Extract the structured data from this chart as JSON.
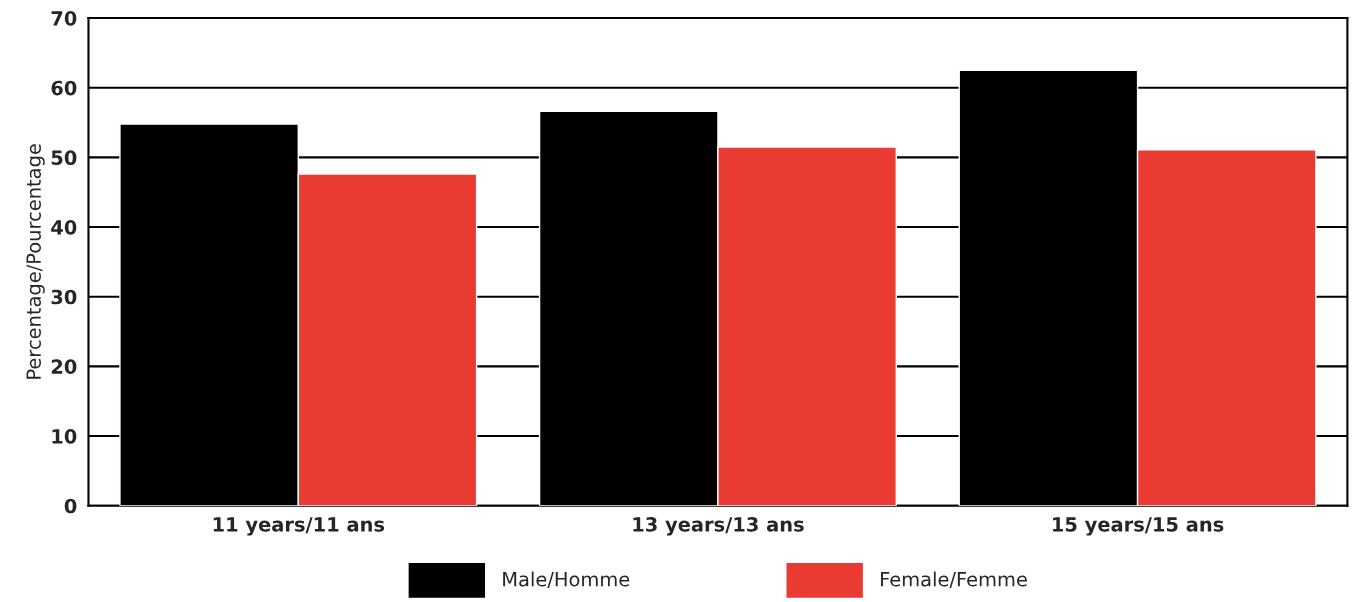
{
  "chart_data": {
    "type": "bar",
    "ylabel": "Percentage/Pourcentage",
    "categories": [
      "11 years/11 ans",
      "13 years/13 ans",
      "15 years/15 ans"
    ],
    "series": [
      {
        "name": "Male/Homme",
        "color": "#000000",
        "values": [
          54.8,
          56.6,
          62.5
        ]
      },
      {
        "name": "Female/Femme",
        "color": "#ea3b33",
        "values": [
          47.6,
          51.5,
          51.1
        ]
      }
    ],
    "ylim": [
      0,
      70
    ],
    "yticks": [
      0,
      10,
      20,
      30,
      40,
      50,
      60,
      70
    ],
    "grid": "y",
    "legend": "bottom"
  }
}
